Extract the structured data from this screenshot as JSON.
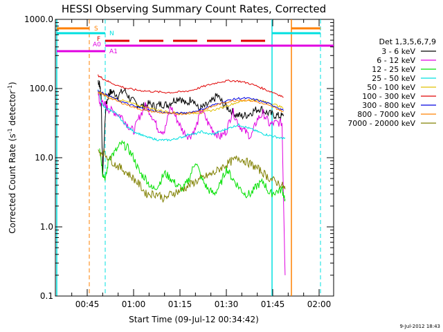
{
  "chart_data": {
    "type": "line",
    "title": "HESSI Observing Summary Count Rates, Corrected",
    "xlabel": "Start Time (09-Jul-12 00:34:42)",
    "ylabel": "Corrected Count Rate (s",
    "ylabel_sup1": "-1",
    "ylabel_mid": " detector",
    "ylabel_sup2": "-1",
    "ylabel_end": ")",
    "timestamp": "9-Jul-2012 18:43",
    "y_scale": "log",
    "ylim": [
      0.1,
      1000
    ],
    "xlim_minutes": [
      34.7,
      124.7
    ],
    "x_ticks": [
      {
        "minute": 45,
        "label": "00:45"
      },
      {
        "minute": 60,
        "label": "01:00"
      },
      {
        "minute": 75,
        "label": "01:15"
      },
      {
        "minute": 90,
        "label": "01:30"
      },
      {
        "minute": 105,
        "label": "01:45"
      },
      {
        "minute": 120,
        "label": "02:00"
      }
    ],
    "y_ticks": [
      {
        "value": 1000,
        "label": "1000.0"
      },
      {
        "value": 100,
        "label": "100.0"
      },
      {
        "value": 10,
        "label": "10.0"
      },
      {
        "value": 1,
        "label": "1.0"
      },
      {
        "value": 0.1,
        "label": "0.1"
      }
    ],
    "legend_title": "Det 1,3,5,6,7,9",
    "legend_position": "right",
    "series": [
      {
        "name": "3 - 6 keV",
        "color": "#000000",
        "x": [
          48.5,
          49,
          49.5,
          50,
          51,
          52,
          53,
          55,
          57,
          59,
          61,
          63,
          65,
          67,
          69,
          71,
          73,
          75,
          77,
          79,
          81,
          83,
          85,
          87,
          89,
          91,
          93,
          95,
          97,
          99,
          101,
          103,
          105,
          107,
          108.5
        ],
        "y": [
          130,
          115,
          80,
          6,
          55,
          85,
          90,
          80,
          95,
          70,
          60,
          55,
          60,
          55,
          60,
          58,
          68,
          75,
          58,
          75,
          50,
          55,
          62,
          80,
          60,
          50,
          42,
          40,
          42,
          48,
          52,
          45,
          42,
          40,
          40
        ]
      },
      {
        "name": "6 - 12 keV",
        "color": "#e000e0",
        "x": [
          48.5,
          49,
          50,
          51,
          52,
          54,
          56,
          58,
          60,
          62,
          64,
          66,
          68,
          70,
          72,
          74,
          76,
          78,
          80,
          82,
          84,
          86,
          88,
          90,
          92,
          94,
          96,
          98,
          100,
          102,
          104,
          106,
          108,
          109
        ],
        "y": [
          100,
          60,
          65,
          55,
          50,
          45,
          40,
          30,
          24,
          40,
          58,
          40,
          26,
          24,
          55,
          36,
          24,
          20,
          26,
          50,
          32,
          24,
          20,
          24,
          48,
          30,
          24,
          20,
          36,
          44,
          30,
          32,
          32,
          0.2
        ]
      },
      {
        "name": "12 - 25 keV",
        "color": "#00e000",
        "x": [
          49,
          50,
          51,
          52,
          54,
          56,
          58,
          60,
          62,
          64,
          66,
          68,
          70,
          72,
          74,
          76,
          78,
          80,
          82,
          84,
          86,
          88,
          90,
          92,
          94,
          96,
          98,
          100,
          102,
          104,
          106,
          108,
          109
        ],
        "y": [
          15,
          6,
          5,
          10,
          12,
          16,
          14,
          10,
          6,
          5,
          3.5,
          4,
          6,
          5,
          4,
          3.5,
          5,
          9,
          5,
          3.5,
          3,
          4,
          7,
          5,
          3.8,
          3,
          3,
          4,
          4.5,
          3,
          3.2,
          3.5,
          2.5
        ]
      },
      {
        "name": "25 - 50 keV",
        "color": "#00e0e0",
        "x": [
          48.5,
          50,
          52,
          54,
          56,
          58,
          60,
          62,
          64,
          66,
          68,
          70,
          72,
          74,
          76,
          78,
          80,
          82,
          84,
          86,
          88,
          90,
          92,
          94,
          96,
          98,
          100,
          102,
          104,
          106,
          108,
          109
        ],
        "y": [
          95,
          55,
          50,
          45,
          35,
          28,
          24,
          22,
          20,
          19,
          18,
          18,
          18,
          19,
          20,
          22,
          22,
          24,
          22,
          22,
          24,
          26,
          28,
          30,
          28,
          26,
          24,
          22,
          21,
          20,
          19,
          19
        ]
      },
      {
        "name": "50 - 100 keV",
        "color": "#e0c000",
        "x": [
          48.5,
          50,
          52,
          55,
          58,
          61,
          64,
          67,
          70,
          73,
          76,
          79,
          82,
          85,
          88,
          91,
          94,
          97,
          100,
          103,
          106,
          108.5
        ],
        "y": [
          90,
          85,
          78,
          70,
          64,
          58,
          54,
          50,
          47,
          45,
          44,
          44,
          45,
          48,
          52,
          58,
          64,
          68,
          68,
          64,
          58,
          52
        ]
      },
      {
        "name": "100 - 300 keV",
        "color": "#e00000",
        "x": [
          48.5,
          50,
          52,
          55,
          58,
          61,
          64,
          67,
          70,
          73,
          76,
          79,
          82,
          85,
          88,
          91,
          94,
          97,
          100,
          103,
          106,
          108.5
        ],
        "y": [
          155,
          140,
          125,
          110,
          100,
          95,
          92,
          90,
          88,
          88,
          90,
          95,
          105,
          115,
          125,
          130,
          128,
          120,
          108,
          95,
          85,
          75
        ]
      },
      {
        "name": "300 - 800 keV",
        "color": "#0000e0",
        "x": [
          48.5,
          50,
          52,
          55,
          58,
          61,
          64,
          67,
          70,
          73,
          76,
          79,
          82,
          85,
          88,
          91,
          94,
          97,
          100,
          103,
          106,
          108.5
        ],
        "y": [
          92,
          86,
          78,
          68,
          60,
          54,
          50,
          47,
          45,
          44,
          44,
          46,
          50,
          56,
          62,
          68,
          72,
          72,
          68,
          62,
          55,
          48
        ]
      },
      {
        "name": "800 - 7000 keV",
        "color": "#ff8000",
        "x": [
          48.5,
          50,
          52,
          55,
          58,
          61,
          64,
          67,
          70,
          73,
          76,
          79,
          82,
          85,
          88,
          91,
          94,
          97,
          100,
          103,
          106,
          108.5
        ],
        "y": [
          88,
          82,
          74,
          65,
          58,
          52,
          48,
          46,
          44,
          43,
          43,
          45,
          48,
          54,
          60,
          65,
          68,
          68,
          64,
          58,
          52,
          46
        ]
      },
      {
        "name": "7000 - 20000 keV",
        "color": "#808000",
        "x": [
          48.5,
          50,
          52,
          54,
          56,
          58,
          60,
          62,
          64,
          66,
          68,
          70,
          72,
          74,
          76,
          78,
          80,
          82,
          84,
          86,
          88,
          90,
          92,
          94,
          96,
          98,
          100,
          102,
          104,
          106,
          108,
          109
        ],
        "y": [
          12,
          12,
          10,
          8,
          7,
          6,
          5,
          4,
          3,
          3,
          3,
          2.5,
          3,
          3.2,
          3.5,
          4,
          4.5,
          5,
          5.5,
          6,
          7,
          8,
          9,
          10,
          9,
          8,
          7,
          6,
          5,
          4.5,
          4,
          3.5
        ]
      }
    ],
    "markers": [
      {
        "label": "S",
        "color": "#ff8000",
        "level": 700
      },
      {
        "label": "N",
        "color": "#00e0e0",
        "level": 550
      },
      {
        "label": "F",
        "color": "#e00000",
        "level": 460
      },
      {
        "label": "A0",
        "color": "#e000e0",
        "level": 380
      },
      {
        "label": "A1",
        "color": "#e000e0",
        "level": 320
      }
    ]
  }
}
